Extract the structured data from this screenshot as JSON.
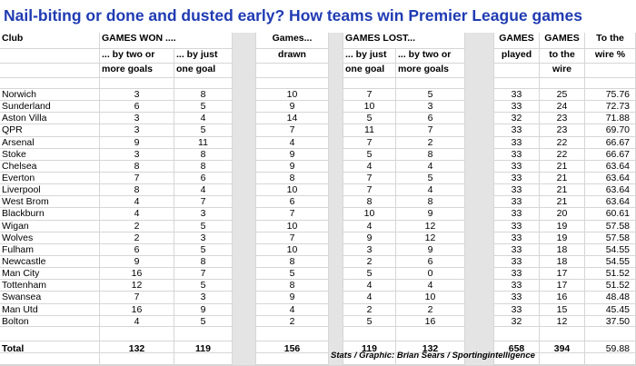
{
  "title": "Nail-biting or done and dusted early? How teams win Premier League games",
  "headers": {
    "club": "Club",
    "games_won": "GAMES WON ....",
    "won_two": [
      "... by two or",
      "more goals"
    ],
    "won_one": [
      "... by just",
      "one goal"
    ],
    "drawn": [
      "Games...",
      "drawn"
    ],
    "games_lost": "GAMES LOST...",
    "lost_one": [
      "... by just",
      "one goal"
    ],
    "lost_two": [
      "... by two or",
      "more goals"
    ],
    "played": [
      "GAMES",
      "played"
    ],
    "wire": [
      "GAMES",
      "to the",
      "wire"
    ],
    "wire_pct": [
      "To the",
      "wire %"
    ]
  },
  "rows": [
    {
      "club": "Norwich",
      "won2": "3",
      "won1": "8",
      "drawn": "10",
      "lost1": "7",
      "lost2": "5",
      "played": "33",
      "wire": "25",
      "pct": "75.76"
    },
    {
      "club": "Sunderland",
      "won2": "6",
      "won1": "5",
      "drawn": "9",
      "lost1": "10",
      "lost2": "3",
      "played": "33",
      "wire": "24",
      "pct": "72.73"
    },
    {
      "club": "Aston Villa",
      "won2": "3",
      "won1": "4",
      "drawn": "14",
      "lost1": "5",
      "lost2": "6",
      "played": "32",
      "wire": "23",
      "pct": "71.88"
    },
    {
      "club": "QPR",
      "won2": "3",
      "won1": "5",
      "drawn": "7",
      "lost1": "11",
      "lost2": "7",
      "played": "33",
      "wire": "23",
      "pct": "69.70"
    },
    {
      "club": "Arsenal",
      "won2": "9",
      "won1": "11",
      "drawn": "4",
      "lost1": "7",
      "lost2": "2",
      "played": "33",
      "wire": "22",
      "pct": "66.67"
    },
    {
      "club": "Stoke",
      "won2": "3",
      "won1": "8",
      "drawn": "9",
      "lost1": "5",
      "lost2": "8",
      "played": "33",
      "wire": "22",
      "pct": "66.67"
    },
    {
      "club": "Chelsea",
      "won2": "8",
      "won1": "8",
      "drawn": "9",
      "lost1": "4",
      "lost2": "4",
      "played": "33",
      "wire": "21",
      "pct": "63.64"
    },
    {
      "club": "Everton",
      "won2": "7",
      "won1": "6",
      "drawn": "8",
      "lost1": "7",
      "lost2": "5",
      "played": "33",
      "wire": "21",
      "pct": "63.64"
    },
    {
      "club": "Liverpool",
      "won2": "8",
      "won1": "4",
      "drawn": "10",
      "lost1": "7",
      "lost2": "4",
      "played": "33",
      "wire": "21",
      "pct": "63.64"
    },
    {
      "club": "West Brom",
      "won2": "4",
      "won1": "7",
      "drawn": "6",
      "lost1": "8",
      "lost2": "8",
      "played": "33",
      "wire": "21",
      "pct": "63.64"
    },
    {
      "club": "Blackburn",
      "won2": "4",
      "won1": "3",
      "drawn": "7",
      "lost1": "10",
      "lost2": "9",
      "played": "33",
      "wire": "20",
      "pct": "60.61"
    },
    {
      "club": "Wigan",
      "won2": "2",
      "won1": "5",
      "drawn": "10",
      "lost1": "4",
      "lost2": "12",
      "played": "33",
      "wire": "19",
      "pct": "57.58"
    },
    {
      "club": "Wolves",
      "won2": "2",
      "won1": "3",
      "drawn": "7",
      "lost1": "9",
      "lost2": "12",
      "played": "33",
      "wire": "19",
      "pct": "57.58"
    },
    {
      "club": "Fulham",
      "won2": "6",
      "won1": "5",
      "drawn": "10",
      "lost1": "3",
      "lost2": "9",
      "played": "33",
      "wire": "18",
      "pct": "54.55"
    },
    {
      "club": "Newcastle",
      "won2": "9",
      "won1": "8",
      "drawn": "8",
      "lost1": "2",
      "lost2": "6",
      "played": "33",
      "wire": "18",
      "pct": "54.55"
    },
    {
      "club": "Man City",
      "won2": "16",
      "won1": "7",
      "drawn": "5",
      "lost1": "5",
      "lost2": "0",
      "played": "33",
      "wire": "17",
      "pct": "51.52"
    },
    {
      "club": "Tottenham",
      "won2": "12",
      "won1": "5",
      "drawn": "8",
      "lost1": "4",
      "lost2": "4",
      "played": "33",
      "wire": "17",
      "pct": "51.52"
    },
    {
      "club": "Swansea",
      "won2": "7",
      "won1": "3",
      "drawn": "9",
      "lost1": "4",
      "lost2": "10",
      "played": "33",
      "wire": "16",
      "pct": "48.48"
    },
    {
      "club": "Man Utd",
      "won2": "16",
      "won1": "9",
      "drawn": "4",
      "lost1": "2",
      "lost2": "2",
      "played": "33",
      "wire": "15",
      "pct": "45.45"
    },
    {
      "club": "Bolton",
      "won2": "4",
      "won1": "5",
      "drawn": "2",
      "lost1": "5",
      "lost2": "16",
      "played": "32",
      "wire": "12",
      "pct": "37.50"
    }
  ],
  "total": {
    "club": "Total",
    "won2": "132",
    "won1": "119",
    "drawn": "156",
    "lost1": "119",
    "lost2": "132",
    "played": "658",
    "wire": "394",
    "pct": "59.88"
  },
  "credit": "Stats / Graphic: Brian Sears / Sportingintelligence",
  "colors": {
    "title": "#1f3bb3",
    "gap_fill": "#e4e4e4",
    "gridline": "#d6d6d6"
  }
}
